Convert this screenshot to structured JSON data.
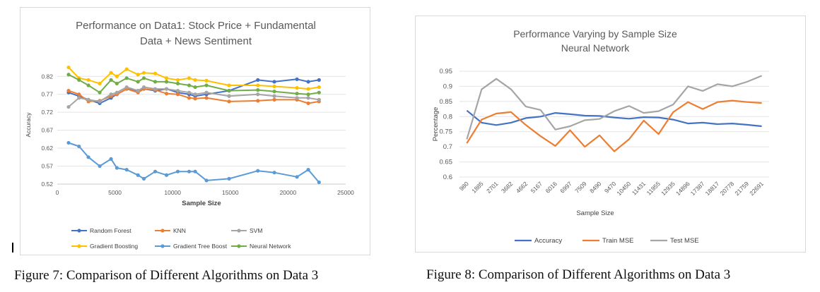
{
  "captions": {
    "left": "Figure 7: Comparison of Different Algorithms on Data 3",
    "right": "Figure 8: Comparison of Different Algorithms on Data 3"
  },
  "chart_data": [
    {
      "type": "line",
      "title_lines": [
        "Performance on Data1: Stock Price + Fundamental",
        "Data + News Sentiment"
      ],
      "xlabel": "Sample Size",
      "ylabel": "Accuracy",
      "xlim": [
        0,
        25000
      ],
      "ylim": [
        0.52,
        0.85
      ],
      "xticks": [
        0,
        5000,
        10000,
        15000,
        20000,
        25000
      ],
      "yticks": [
        0.52,
        0.57,
        0.62,
        0.67,
        0.72,
        0.77,
        0.82
      ],
      "ytick_labels": [
        "0.52",
        "0.57",
        "0.62",
        "0.67",
        "0.72",
        "0.77",
        "0.82"
      ],
      "grid": true,
      "legend_position": "bottom",
      "markers": true,
      "x": [
        980,
        1885,
        2701,
        3682,
        4662,
        5167,
        6016,
        6997,
        7509,
        8490,
        9470,
        10450,
        11431,
        11955,
        12935,
        14896,
        17387,
        18817,
        20778,
        21759,
        22691
      ],
      "series": [
        {
          "name": "Random Forest",
          "color": "#4472c4",
          "values": [
            0.775,
            0.765,
            0.755,
            0.745,
            0.76,
            0.77,
            0.785,
            0.78,
            0.785,
            0.78,
            0.785,
            0.775,
            0.77,
            0.765,
            0.77,
            0.78,
            0.81,
            0.805,
            0.812,
            0.805,
            0.81
          ]
        },
        {
          "name": "KNN",
          "color": "#ed7d31",
          "values": [
            0.78,
            0.77,
            0.75,
            0.752,
            0.765,
            0.77,
            0.785,
            0.775,
            0.785,
            0.782,
            0.772,
            0.77,
            0.76,
            0.758,
            0.76,
            0.75,
            0.752,
            0.755,
            0.755,
            0.745,
            0.75
          ]
        },
        {
          "name": "SVM",
          "color": "#a5a5a5",
          "values": [
            0.735,
            0.76,
            0.755,
            0.75,
            0.77,
            0.775,
            0.79,
            0.78,
            0.79,
            0.785,
            0.785,
            0.78,
            0.775,
            0.77,
            0.775,
            0.765,
            0.77,
            0.765,
            0.76,
            0.76,
            0.755
          ]
        },
        {
          "name": "Gradient Boosting",
          "color": "#ffc000",
          "values": [
            0.845,
            0.815,
            0.81,
            0.8,
            0.83,
            0.82,
            0.84,
            0.825,
            0.83,
            0.828,
            0.815,
            0.81,
            0.815,
            0.81,
            0.808,
            0.795,
            0.795,
            0.792,
            0.788,
            0.785,
            0.79
          ]
        },
        {
          "name": "Gradient Tree Boost",
          "color": "#5b9bd5",
          "values": [
            0.635,
            0.625,
            0.595,
            0.57,
            0.59,
            0.565,
            0.56,
            0.545,
            0.535,
            0.555,
            0.545,
            0.555,
            0.555,
            0.555,
            0.53,
            0.535,
            0.557,
            0.552,
            0.54,
            0.56,
            0.525
          ]
        },
        {
          "name": "Neural Network",
          "color": "#70ad47",
          "values": [
            0.825,
            0.81,
            0.795,
            0.775,
            0.81,
            0.8,
            0.815,
            0.805,
            0.815,
            0.805,
            0.805,
            0.8,
            0.795,
            0.79,
            0.795,
            0.78,
            0.782,
            0.778,
            0.772,
            0.77,
            0.775
          ]
        }
      ]
    },
    {
      "type": "line",
      "title_lines": [
        "Performance Varying by Sample Size",
        "Neural Network"
      ],
      "xlabel": "Sample Size",
      "ylabel": "Percentage",
      "ylim": [
        0.6,
        0.95
      ],
      "yticks": [
        0.6,
        0.65,
        0.7,
        0.75,
        0.8,
        0.85,
        0.9,
        0.95
      ],
      "ytick_labels": [
        "0.6",
        "0.65",
        "0.7",
        "0.75",
        "0.8",
        "0.85",
        "0.9",
        "0.95"
      ],
      "grid": true,
      "legend_position": "bottom",
      "categories": [
        "980",
        "1885",
        "2701",
        "3682",
        "4662",
        "5167",
        "6016",
        "6997",
        "7509",
        "8490",
        "9470",
        "10450",
        "11431",
        "11955",
        "12935",
        "14896",
        "17387",
        "18817",
        "20778",
        "21759",
        "22691"
      ],
      "series": [
        {
          "name": "Accuracy",
          "color": "#4472c4",
          "values": [
            0.82,
            0.78,
            0.772,
            0.78,
            0.795,
            0.8,
            0.812,
            0.808,
            0.803,
            0.802,
            0.797,
            0.793,
            0.798,
            0.797,
            0.79,
            0.777,
            0.78,
            0.775,
            0.777,
            0.773,
            0.768
          ]
        },
        {
          "name": "Train MSE",
          "color": "#ed7d31",
          "values": [
            0.712,
            0.79,
            0.81,
            0.815,
            0.772,
            0.735,
            0.703,
            0.755,
            0.7,
            0.738,
            0.685,
            0.725,
            0.787,
            0.742,
            0.815,
            0.848,
            0.825,
            0.848,
            0.853,
            0.848,
            0.845
          ]
        },
        {
          "name": "Test MSE",
          "color": "#a5a5a5",
          "values": [
            0.725,
            0.89,
            0.925,
            0.89,
            0.833,
            0.822,
            0.757,
            0.768,
            0.788,
            0.792,
            0.818,
            0.835,
            0.812,
            0.818,
            0.84,
            0.9,
            0.885,
            0.907,
            0.9,
            0.915,
            0.935
          ]
        }
      ]
    }
  ]
}
